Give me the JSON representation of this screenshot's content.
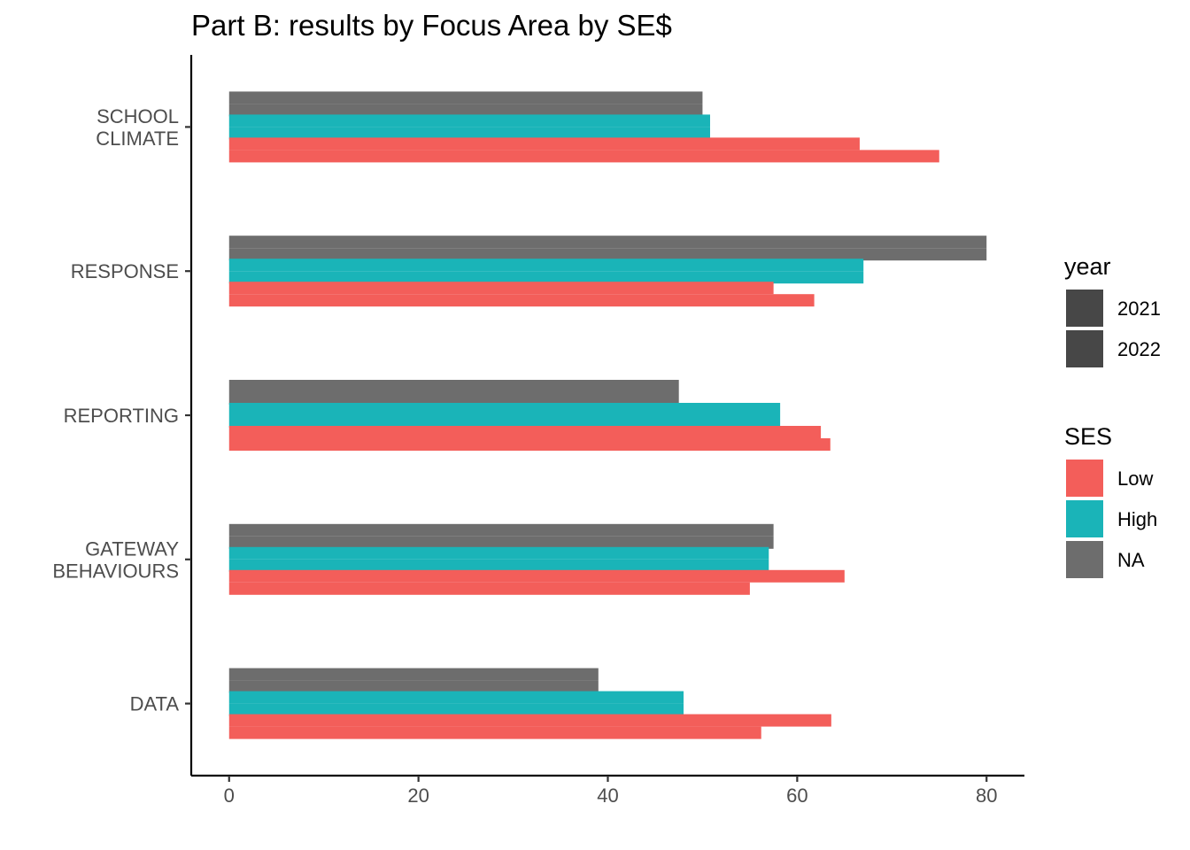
{
  "chart_data": {
    "type": "bar",
    "orientation": "horizontal",
    "title": "Part B: results by Focus Area by SE$",
    "xlabel": "",
    "ylabel": "",
    "xlim": [
      -4,
      84
    ],
    "x_ticks": [
      0,
      20,
      40,
      60,
      80
    ],
    "grid": false,
    "legend_position": "right",
    "categories": [
      [
        "SCHOOL",
        "CLIMATE"
      ],
      [
        "RESPONSE"
      ],
      [
        "REPORTING"
      ],
      [
        "GATEWAY",
        "BEHAVIOURS"
      ],
      [
        "DATA"
      ]
    ],
    "series": [
      {
        "name": "NA",
        "color": "#6d6d6d",
        "values": {
          "2021": [
            50,
            80,
            47.5,
            57.5,
            39
          ],
          "2022": [
            50,
            80,
            47.5,
            57.5,
            39
          ]
        }
      },
      {
        "name": "High",
        "color": "#1ab4b8",
        "values": {
          "2021": [
            50.8,
            67,
            58.2,
            57,
            48
          ],
          "2022": [
            50.8,
            67,
            58.2,
            57,
            48
          ]
        }
      },
      {
        "name": "Low",
        "color": "#f35e5a",
        "values": {
          "2021": [
            66.6,
            57.5,
            62.5,
            65,
            63.6
          ],
          "2022": [
            75,
            61.8,
            63.5,
            55,
            56.2
          ]
        }
      }
    ],
    "legends": [
      {
        "title": "year",
        "items": [
          {
            "label": "2021",
            "color": "#474747"
          },
          {
            "label": "2022",
            "color": "#474747"
          }
        ]
      },
      {
        "title": "SES",
        "items": [
          {
            "label": "Low",
            "color": "#f35e5a"
          },
          {
            "label": "High",
            "color": "#1ab4b8"
          },
          {
            "label": "NA",
            "color": "#6d6d6d"
          }
        ]
      }
    ]
  }
}
